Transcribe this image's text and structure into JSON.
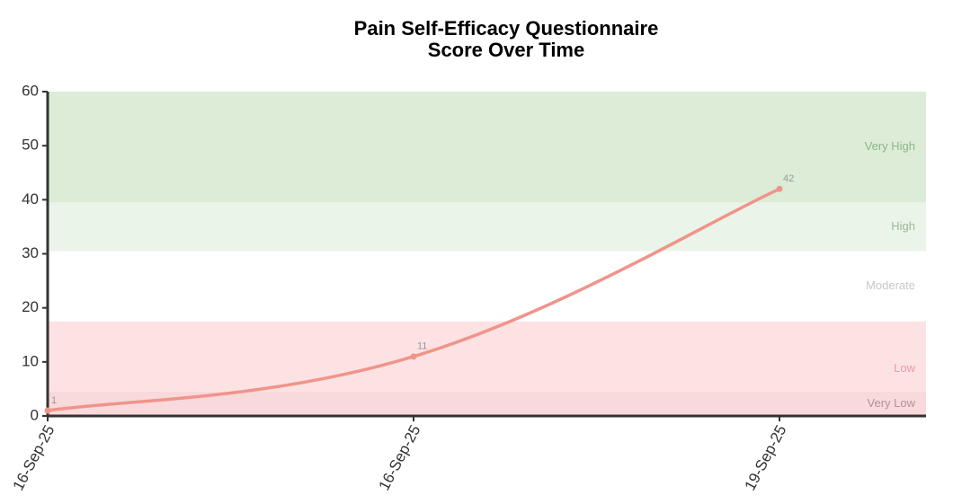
{
  "chart_data": {
    "type": "line",
    "title": [
      "Pain Self-Efficacy Questionnaire",
      "Score Over Time"
    ],
    "categories": [
      "16-Sep-25",
      "16-Sep-25",
      "19-Sep-25"
    ],
    "series": [
      {
        "color": "#f0948a",
        "values": [
          1,
          11,
          42
        ]
      }
    ],
    "ylim": [
      0,
      60
    ],
    "yticks": [
      0,
      10,
      20,
      30,
      40,
      50,
      60
    ],
    "bands": [
      {
        "label": "Very High",
        "from": 39.5,
        "to": 60,
        "color": "#dcecd7",
        "text_color": "#8fb58a"
      },
      {
        "label": "High",
        "from": 30.5,
        "to": 39.5,
        "color": "#ebf4e8",
        "text_color": "#9ab89a"
      },
      {
        "label": "Moderate",
        "from": 17.5,
        "to": 30.5,
        "color": "#ffffff",
        "text_color": "#c8c8c8"
      },
      {
        "label": "Low",
        "from": 0,
        "to": 17.5,
        "color": "#fde2e4",
        "text_color": "#e89aa8"
      },
      {
        "label": "Very Low",
        "from": 0,
        "to": 4.5,
        "color": "#f8d9dc",
        "text_color": "#b09598"
      }
    ]
  }
}
